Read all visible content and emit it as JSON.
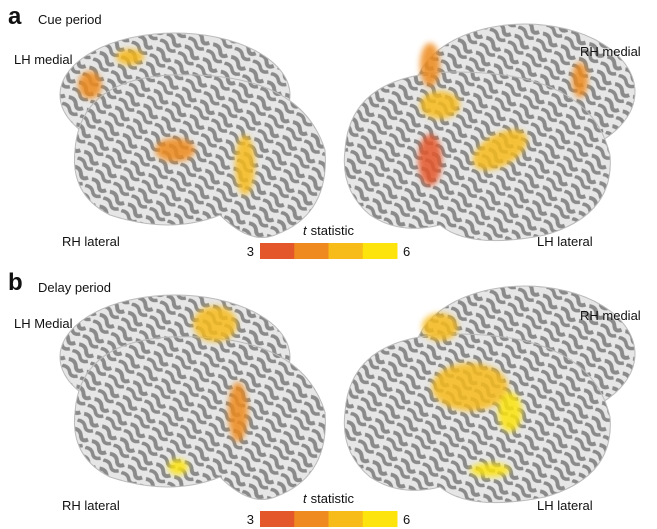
{
  "panels": [
    {
      "label": "a",
      "title": "Cue period",
      "views": {
        "back_left": "LH medial",
        "back_right": "RH medial",
        "front_left": "RH lateral",
        "front_right": "LH lateral"
      },
      "colorbar": {
        "variable": "t",
        "label": "statistic",
        "min": 3,
        "max": 6,
        "colors": [
          "#e4572a",
          "#ee8a1f",
          "#f7bb1a",
          "#fde40c"
        ]
      }
    },
    {
      "label": "b",
      "title": "Delay period",
      "views": {
        "back_left": "LH Medial",
        "back_right": "RH medial",
        "front_left": "RH lateral",
        "front_right": "LH lateral"
      },
      "colorbar": {
        "variable": "t",
        "label": "statistic",
        "min": 3,
        "max": 6,
        "colors": [
          "#e4572a",
          "#ee8a1f",
          "#f7bb1a",
          "#fde40c"
        ]
      }
    }
  ]
}
